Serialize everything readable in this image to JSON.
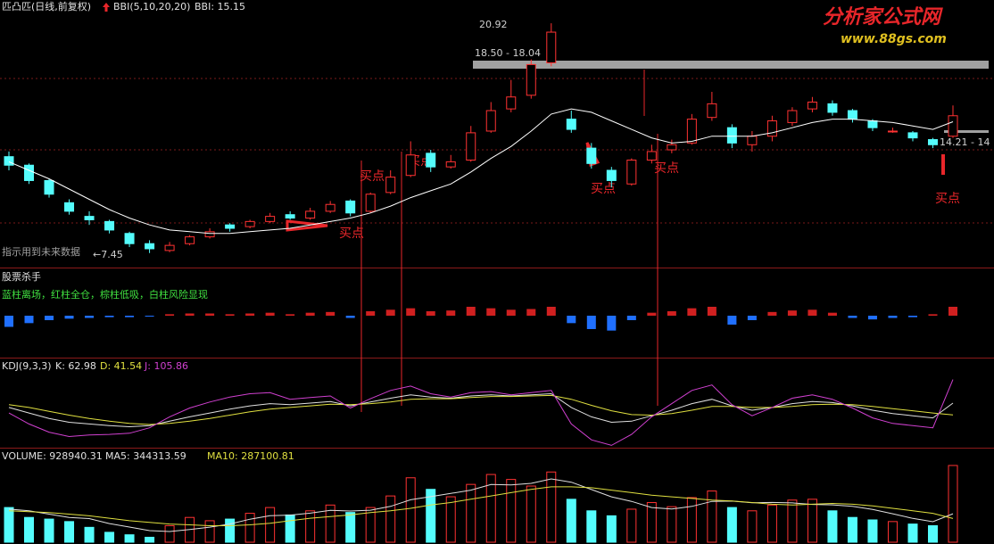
{
  "header": {
    "title": "匹凸匹(日线,前复权)",
    "indicator": "BBI(5,10,20,20)",
    "bbi_value": "BBI: 15.15"
  },
  "watermark": {
    "name": "分析家公式网",
    "url": "www.88gs.com"
  },
  "price": {
    "ylim": [
      6.6,
      21.5
    ],
    "high_label": "20.92",
    "range_label": "18.50 - 18.04",
    "low_label": "←7.45",
    "right_label": "14.21 - 14",
    "warning": "指示用到未来数据",
    "buy_labels": [
      "买点",
      "买点",
      "买点",
      "买点",
      "买点",
      "买点"
    ],
    "candles": [
      [
        13.1,
        12.6,
        13.4,
        12.3
      ],
      [
        12.6,
        11.7,
        12.7,
        11.5
      ],
      [
        11.7,
        10.9,
        11.8,
        10.7
      ],
      [
        10.4,
        9.9,
        10.6,
        9.7
      ],
      [
        9.6,
        9.4,
        9.9,
        9.1
      ],
      [
        9.3,
        8.8,
        9.4,
        8.6
      ],
      [
        8.6,
        8.0,
        8.7,
        7.8
      ],
      [
        8.0,
        7.7,
        8.2,
        7.45
      ],
      [
        7.6,
        7.9,
        8.1,
        7.5
      ],
      [
        8.0,
        8.4,
        8.5,
        7.9
      ],
      [
        8.4,
        8.7,
        8.9,
        8.3
      ],
      [
        9.1,
        8.9,
        9.2,
        8.7
      ],
      [
        9.0,
        9.3,
        9.4,
        8.9
      ],
      [
        9.3,
        9.6,
        9.8,
        9.2
      ],
      [
        9.7,
        9.5,
        9.9,
        9.4
      ],
      [
        9.5,
        9.9,
        10.1,
        9.4
      ],
      [
        9.9,
        10.3,
        10.5,
        9.8
      ],
      [
        10.5,
        9.8,
        10.6,
        9.6
      ],
      [
        9.9,
        10.9,
        11.0,
        9.8
      ],
      [
        11.0,
        11.9,
        12.3,
        10.9
      ],
      [
        12.0,
        13.2,
        14.0,
        11.9
      ],
      [
        13.3,
        12.5,
        13.5,
        12.2
      ],
      [
        12.5,
        12.8,
        13.2,
        12.4
      ],
      [
        12.9,
        14.5,
        14.9,
        12.8
      ],
      [
        14.6,
        15.8,
        16.3,
        14.5
      ],
      [
        15.9,
        16.6,
        17.6,
        15.7
      ],
      [
        16.7,
        18.5,
        18.8,
        16.5
      ],
      [
        18.6,
        20.4,
        20.92,
        18.4
      ],
      [
        15.3,
        14.7,
        15.8,
        14.5
      ],
      [
        13.6,
        12.7,
        13.9,
        12.4
      ],
      [
        12.3,
        11.7,
        12.5,
        11.3
      ],
      [
        11.5,
        12.9,
        13.0,
        11.4
      ],
      [
        12.9,
        13.4,
        13.8,
        12.7
      ],
      [
        13.5,
        13.8,
        14.1,
        13.3
      ],
      [
        13.9,
        15.3,
        15.6,
        13.8
      ],
      [
        15.4,
        16.2,
        16.9,
        15.2
      ],
      [
        14.8,
        13.9,
        15.0,
        13.6
      ],
      [
        13.8,
        14.3,
        14.6,
        13.4
      ],
      [
        14.3,
        15.2,
        15.5,
        14.0
      ],
      [
        15.1,
        15.8,
        16.0,
        14.9
      ],
      [
        15.9,
        16.3,
        16.6,
        15.7
      ],
      [
        16.2,
        15.7,
        16.4,
        15.5
      ],
      [
        15.8,
        15.3,
        15.9,
        15.1
      ],
      [
        15.2,
        14.8,
        15.3,
        14.6
      ],
      [
        14.6,
        14.6,
        14.8,
        14.5
      ],
      [
        14.5,
        14.2,
        14.6,
        14.0
      ],
      [
        14.1,
        13.8,
        14.2,
        13.6
      ],
      [
        14.3,
        15.5,
        16.1,
        14.2
      ]
    ],
    "bbi": [
      12.8,
      12.3,
      11.8,
      11.2,
      10.6,
      10.0,
      9.5,
      9.1,
      8.8,
      8.7,
      8.6,
      8.6,
      8.7,
      8.8,
      8.9,
      9.1,
      9.3,
      9.5,
      9.8,
      10.2,
      10.7,
      11.1,
      11.5,
      12.2,
      13.0,
      13.7,
      14.6,
      15.6,
      15.9,
      15.7,
      15.2,
      14.7,
      14.2,
      13.9,
      14.0,
      14.3,
      14.3,
      14.3,
      14.5,
      14.8,
      15.1,
      15.3,
      15.3,
      15.2,
      15.1,
      14.9,
      14.7,
      15.15
    ]
  },
  "killer": {
    "title": "股票杀手",
    "legend": "蓝柱离场，红柱全仓，棕柱低吸，白柱风险显现",
    "ylim": [
      -3,
      3
    ],
    "values": [
      -1.5,
      -1.0,
      -0.6,
      -0.4,
      -0.3,
      -0.2,
      -0.2,
      -0.1,
      0.2,
      0.3,
      0.3,
      0.2,
      0.3,
      0.4,
      0.2,
      0.4,
      0.5,
      -0.3,
      0.6,
      0.8,
      1.0,
      0.6,
      0.7,
      1.2,
      1.0,
      0.8,
      0.9,
      1.2,
      -1.0,
      -1.8,
      -2.0,
      -0.6,
      0.4,
      0.6,
      1.0,
      1.2,
      -1.2,
      -0.6,
      0.5,
      0.7,
      0.8,
      0.4,
      -0.3,
      -0.5,
      -0.3,
      -0.2,
      0.2,
      1.2
    ]
  },
  "kdj": {
    "title": "KDJ(9,3,3)",
    "k_label": "K: 62.98",
    "d_label": "D: 41.54",
    "j_label": "J: 105.86",
    "ylim": [
      -15,
      115
    ],
    "k": [
      55,
      45,
      35,
      28,
      25,
      22,
      20,
      22,
      30,
      38,
      45,
      52,
      58,
      62,
      60,
      63,
      66,
      58,
      65,
      72,
      78,
      74,
      72,
      76,
      78,
      76,
      78,
      80,
      55,
      38,
      28,
      30,
      40,
      50,
      62,
      70,
      58,
      50,
      55,
      62,
      66,
      64,
      58,
      50,
      44,
      40,
      36,
      62.98
    ],
    "d": [
      60,
      55,
      48,
      41,
      35,
      30,
      26,
      24,
      26,
      30,
      35,
      41,
      47,
      52,
      55,
      58,
      61,
      60,
      62,
      65,
      70,
      71,
      71,
      73,
      75,
      75,
      76,
      77,
      70,
      59,
      49,
      42,
      41,
      44,
      50,
      57,
      57,
      55,
      55,
      57,
      60,
      61,
      60,
      57,
      53,
      49,
      45,
      41.54
    ],
    "j": [
      45,
      25,
      10,
      2,
      5,
      6,
      8,
      18,
      38,
      54,
      65,
      74,
      80,
      82,
      70,
      73,
      76,
      54,
      71,
      86,
      94,
      80,
      74,
      82,
      84,
      78,
      82,
      86,
      25,
      -4,
      -14,
      6,
      38,
      62,
      86,
      96,
      60,
      40,
      55,
      72,
      78,
      70,
      54,
      36,
      26,
      22,
      18,
      105.86
    ]
  },
  "volume": {
    "title": "VOLUME: 928940.31",
    "ma5_label": "MA5: 344313.59",
    "ma10_label": "MA10: 287100.81",
    "ylim": [
      0,
      950000
    ],
    "values": [
      420000,
      300000,
      280000,
      250000,
      180000,
      120000,
      90000,
      60000,
      200000,
      300000,
      260000,
      280000,
      350000,
      420000,
      330000,
      380000,
      450000,
      360000,
      420000,
      560000,
      780000,
      640000,
      550000,
      700000,
      820000,
      760000,
      680000,
      850000,
      520000,
      380000,
      320000,
      400000,
      480000,
      430000,
      540000,
      620000,
      420000,
      380000,
      450000,
      510000,
      520000,
      380000,
      300000,
      270000,
      250000,
      220000,
      200000,
      928940.31
    ],
    "ma5": [
      400000,
      380000,
      340000,
      300000,
      286000,
      226000,
      184000,
      140000,
      130000,
      154000,
      182000,
      220000,
      278000,
      322000,
      328000,
      352000,
      386000,
      378000,
      388000,
      434000,
      514000,
      552000,
      590000,
      630000,
      698000,
      694000,
      712000,
      766000,
      726000,
      638000,
      550000,
      494000,
      420000,
      402000,
      434000,
      494000,
      498000,
      478000,
      482000,
      476000,
      458000,
      452000,
      434000,
      396000,
      344000,
      288000,
      248000,
      344313.59
    ],
    "ma10": [
      380000,
      370000,
      360000,
      340000,
      320000,
      290000,
      260000,
      240000,
      220000,
      210000,
      200000,
      200000,
      210000,
      230000,
      260000,
      290000,
      310000,
      330000,
      360000,
      380000,
      410000,
      450000,
      480000,
      520000,
      560000,
      600000,
      640000,
      670000,
      670000,
      660000,
      630000,
      600000,
      570000,
      550000,
      530000,
      510000,
      500000,
      480000,
      460000,
      450000,
      460000,
      470000,
      460000,
      440000,
      410000,
      380000,
      350000,
      287100.81
    ]
  }
}
